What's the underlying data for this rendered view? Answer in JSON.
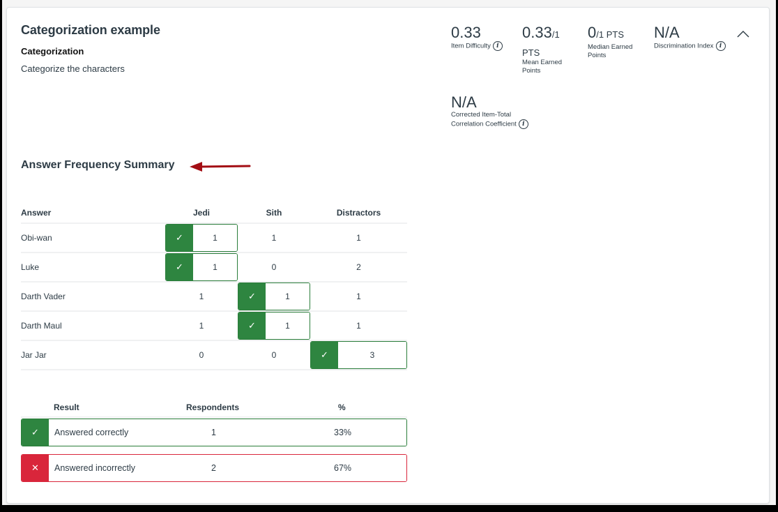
{
  "question": {
    "title": "Categorization example",
    "type": "Categorization",
    "text": "Categorize the characters"
  },
  "stats": {
    "item_difficulty": {
      "value": "0.33",
      "label": "Item Difficulty"
    },
    "mean_earned": {
      "value": "0.33",
      "max": "/1",
      "unit": "PTS",
      "label_line1": "Mean Earned",
      "label_line2": "Points"
    },
    "median_earned": {
      "value": "0",
      "max": "/1 PTS",
      "label_line1": "Median Earned",
      "label_line2": "Points"
    },
    "discrimination_index": {
      "value": "N/A",
      "label": "Discrimination Index"
    },
    "corrected_item_total": {
      "value": "N/A",
      "label_line1": "Corrected Item-Total",
      "label_line2": "Correlation Coefficient"
    }
  },
  "icons": {
    "info": "i",
    "check": "✓",
    "cross": "✕"
  },
  "frequency": {
    "title": "Answer Frequency Summary",
    "headers": [
      "Answer",
      "Jedi",
      "Sith",
      "Distractors"
    ],
    "rows": [
      {
        "answer": "Obi-wan",
        "jedi": "1",
        "sith": "1",
        "distractors": "1",
        "correct": "jedi"
      },
      {
        "answer": "Luke",
        "jedi": "1",
        "sith": "0",
        "distractors": "2",
        "correct": "jedi"
      },
      {
        "answer": "Darth Vader",
        "jedi": "1",
        "sith": "1",
        "distractors": "1",
        "correct": "sith"
      },
      {
        "answer": "Darth Maul",
        "jedi": "1",
        "sith": "1",
        "distractors": "1",
        "correct": "sith"
      },
      {
        "answer": "Jar Jar",
        "jedi": "0",
        "sith": "0",
        "distractors": "3",
        "correct": "distractors"
      }
    ]
  },
  "results": {
    "headers": [
      "Result",
      "Respondents",
      "%"
    ],
    "rows": [
      {
        "label": "Answered correctly",
        "respondents": "1",
        "percent": "33%"
      },
      {
        "label": "Answered incorrectly",
        "respondents": "2",
        "percent": "67%"
      }
    ]
  },
  "colors": {
    "correct": "#2e8540",
    "incorrect": "#d9263b",
    "text": "#2d3b45",
    "annotation_arrow": "#a30d14"
  }
}
